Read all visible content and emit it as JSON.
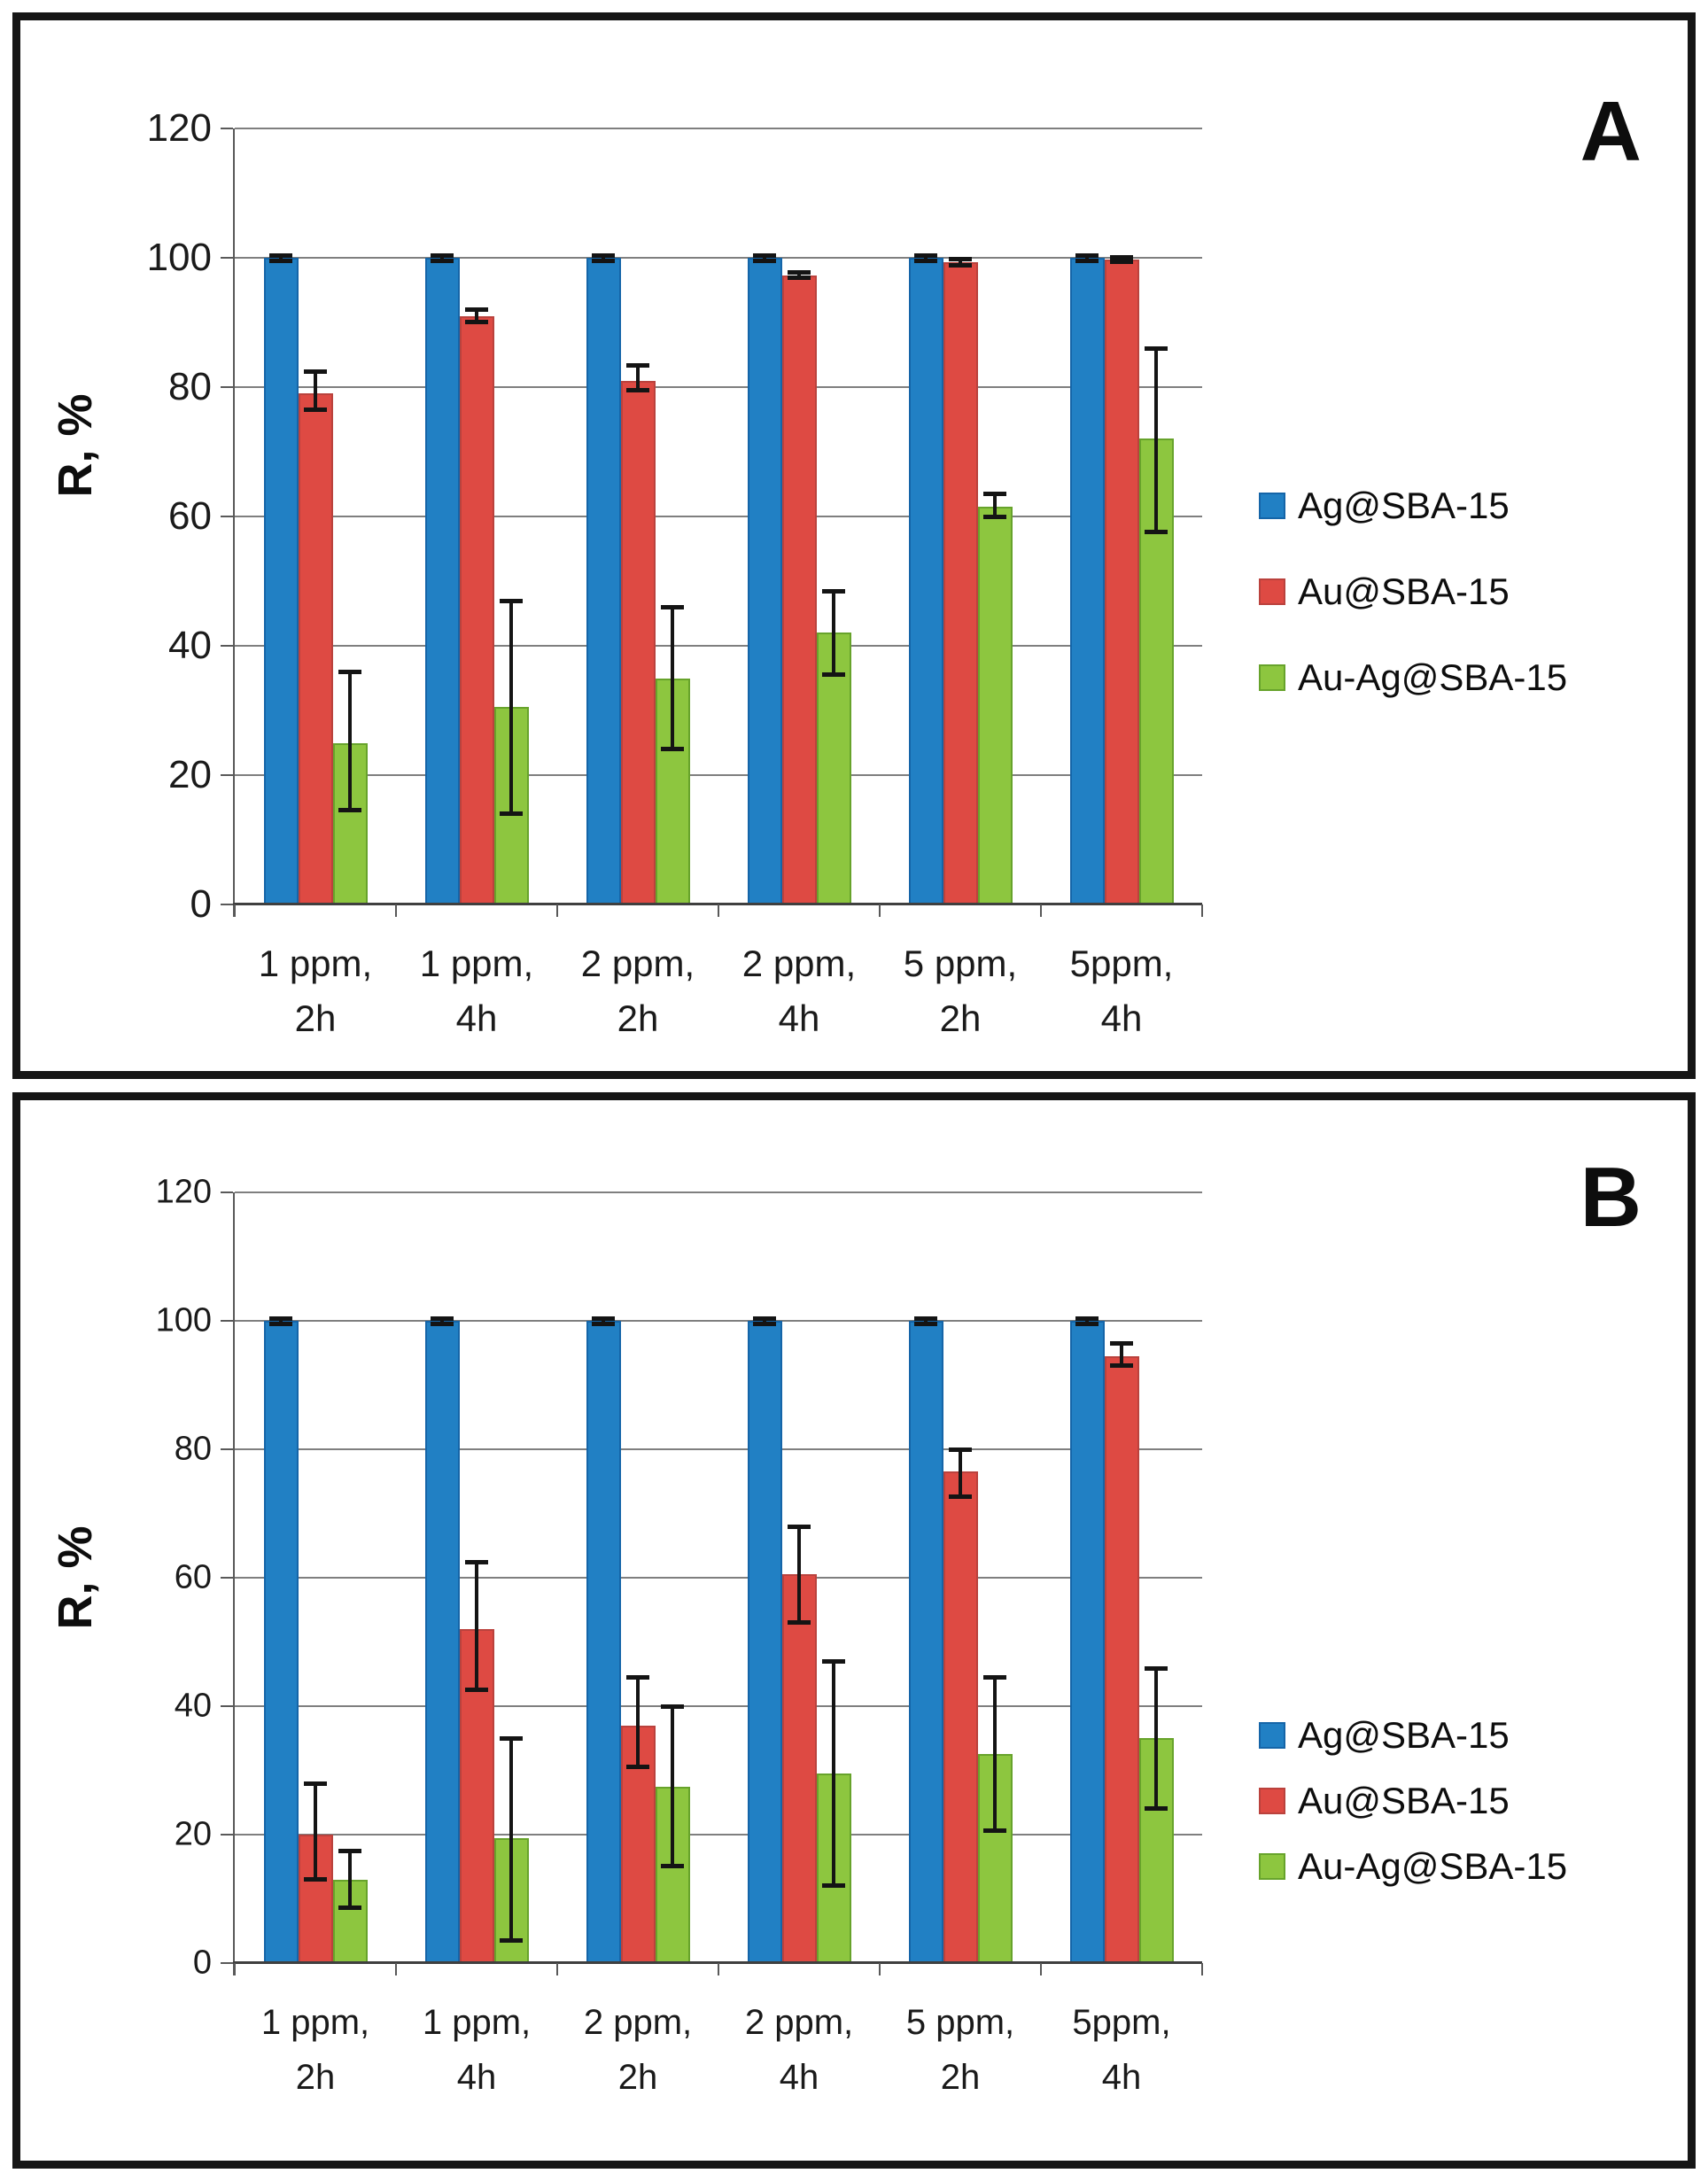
{
  "figure": {
    "description": "Two stacked black-bordered panels (A, B), each a grouped bar chart with error bars",
    "background": "#FFFFFF",
    "panel_border_color": "#161616"
  },
  "colors": {
    "grid": "#7F7F7F",
    "axis": "#595959",
    "baseline": "#3F3F3F",
    "error_bar": "#141414",
    "text": "#1A1A1A",
    "series_blue": "#2180C4",
    "series_red": "#DE4A43",
    "series_green": "#8DC63F"
  },
  "chart_data": [
    {
      "panel_label": "A",
      "type": "bar",
      "title": "",
      "xlabel": "",
      "ylabel": "R, %",
      "ylim": [
        0,
        120
      ],
      "yticks": [
        0,
        20,
        40,
        60,
        80,
        100,
        120
      ],
      "grid": true,
      "legend_position": "right",
      "error_bars": true,
      "categories": [
        "1 ppm, 2h",
        "1 ppm, 4h",
        "2 ppm, 2h",
        "2 ppm, 4h",
        "5 ppm, 2h",
        "5ppm, 4h"
      ],
      "categories_lines": [
        [
          "1 ppm,",
          "2h"
        ],
        [
          "1 ppm,",
          "4h"
        ],
        [
          "2 ppm,",
          "2h"
        ],
        [
          "2 ppm,",
          "4h"
        ],
        [
          "5 ppm,",
          "2h"
        ],
        [
          "5ppm,",
          "4h"
        ]
      ],
      "series": [
        {
          "name": "Ag@SBA-15",
          "fill": "#2180C4",
          "edge": "#1565A8",
          "values": [
            100,
            100,
            100,
            100,
            100,
            100
          ],
          "err_minus": [
            0.5,
            0.5,
            0.5,
            0.5,
            0.5,
            0.5
          ],
          "err_plus": [
            0.4,
            0.4,
            0.4,
            0.4,
            0.4,
            0.4
          ]
        },
        {
          "name": "Au@SBA-15",
          "fill": "#DE4A43",
          "edge": "#BA423D",
          "values": [
            79,
            91,
            81,
            97.3,
            99.3,
            99.7
          ],
          "err_minus": [
            2.5,
            1,
            1.6,
            0.5,
            0.6,
            0.4
          ],
          "err_plus": [
            3.5,
            1,
            2.4,
            0.5,
            0.6,
            0.4
          ]
        },
        {
          "name": "Au-Ag@SBA-15",
          "fill": "#8DC63F",
          "edge": "#67A32B",
          "values": [
            25,
            30.5,
            35,
            42,
            61.5,
            72
          ],
          "err_minus": [
            10.5,
            16.5,
            11,
            6.5,
            1.7,
            14.5
          ],
          "err_plus": [
            11,
            16.5,
            11,
            6.5,
            2,
            14
          ]
        }
      ]
    },
    {
      "panel_label": "B",
      "type": "bar",
      "title": "",
      "xlabel": "",
      "ylabel": "R, %",
      "ylim": [
        0,
        120
      ],
      "yticks": [
        0,
        20,
        40,
        60,
        80,
        100,
        120
      ],
      "grid": true,
      "legend_position": "right",
      "error_bars": true,
      "categories": [
        "1 ppm, 2h",
        "1 ppm, 4h",
        "2 ppm, 2h",
        "2 ppm, 4h",
        "5 ppm, 2h",
        "5ppm, 4h"
      ],
      "categories_lines": [
        [
          "1 ppm,",
          "2h"
        ],
        [
          "1 ppm,",
          "4h"
        ],
        [
          "2 ppm,",
          "2h"
        ],
        [
          "2 ppm,",
          "4h"
        ],
        [
          "5 ppm,",
          "2h"
        ],
        [
          "5ppm,",
          "4h"
        ]
      ],
      "series": [
        {
          "name": "Ag@SBA-15",
          "fill": "#2180C4",
          "edge": "#1565A8",
          "values": [
            100,
            100,
            100,
            100,
            100,
            100
          ],
          "err_minus": [
            0.5,
            0.5,
            0.5,
            0.5,
            0.5,
            0.5
          ],
          "err_plus": [
            0.4,
            0.4,
            0.4,
            0.4,
            0.4,
            0.4
          ]
        },
        {
          "name": "Au@SBA-15",
          "fill": "#DE4A43",
          "edge": "#BA423D",
          "values": [
            20,
            52,
            37,
            60.5,
            76.5,
            94.5
          ],
          "err_minus": [
            7,
            9.5,
            6.5,
            7.5,
            4,
            1.5
          ],
          "err_plus": [
            8,
            10.5,
            7.5,
            7.5,
            3.5,
            2
          ]
        },
        {
          "name": "Au-Ag@SBA-15",
          "fill": "#8DC63F",
          "edge": "#67A32B",
          "values": [
            13,
            19.5,
            27.5,
            29.5,
            32.5,
            35
          ],
          "err_minus": [
            4.5,
            16,
            12.5,
            17.5,
            12,
            11
          ],
          "err_plus": [
            4.5,
            15.5,
            12.5,
            17.5,
            12,
            11
          ]
        }
      ]
    }
  ]
}
